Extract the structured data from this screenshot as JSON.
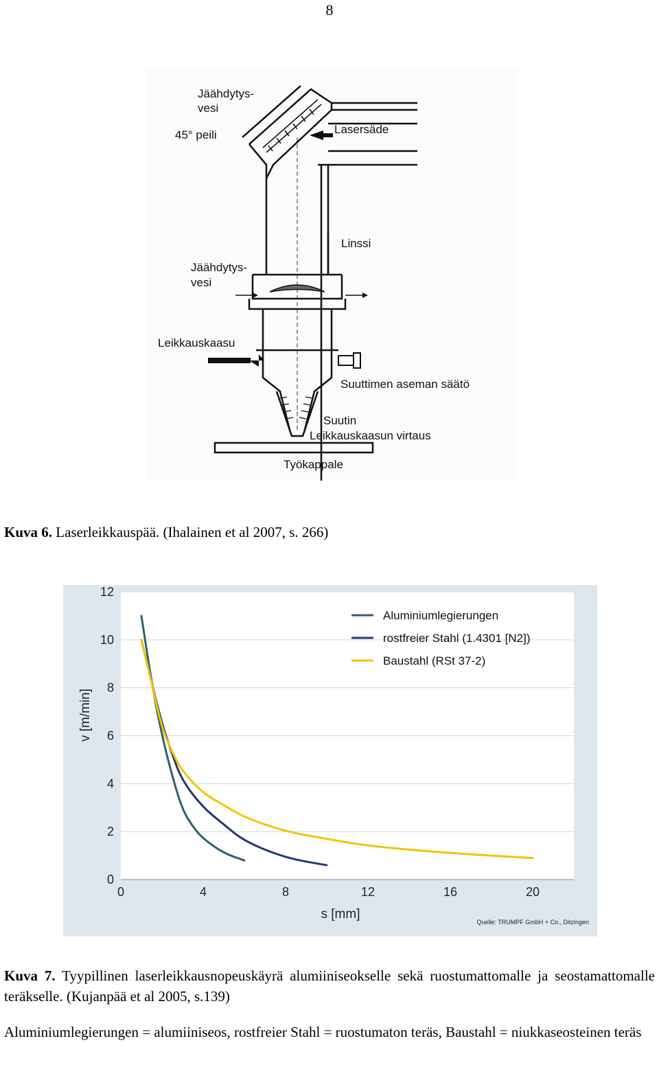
{
  "page_number": "8",
  "figure1": {
    "labels": {
      "cooling_water_top_1": "Jäähdytys-",
      "cooling_water_top_2": "vesi",
      "mirror": "45° peili",
      "laser_beam": "Lasersäde",
      "lens": "Linssi",
      "cooling_water_mid_1": "Jäähdytys-",
      "cooling_water_mid_2": "vesi",
      "cutting_gas": "Leikkauskaasu",
      "nozzle_adjust": "Suuttimen aseman säätö",
      "nozzle": "Suutin",
      "gas_flow": "Leikkauskaasun virtaus",
      "workpiece": "Työkappale"
    },
    "caption_bold": "Kuva 6.",
    "caption_text": " Laserleikkauspää. (Ihalainen et al 2007, s. 266)"
  },
  "chart_data": {
    "type": "line",
    "xlabel": "s [mm]",
    "ylabel": "v [m/min]",
    "xlim": [
      0,
      22
    ],
    "ylim": [
      0,
      12
    ],
    "xticks": [
      "0",
      "4",
      "8",
      "12",
      "16",
      "20"
    ],
    "yticks": [
      "0",
      "2",
      "4",
      "6",
      "8",
      "10",
      "12"
    ],
    "grid": "horizontal",
    "legend_position": "top-right",
    "source": "Quelle: TRUMPF GmbH + Co., Ditzingen",
    "series": [
      {
        "name": "Aluminiumlegierungen",
        "color": "#2f5f6f",
        "x": [
          1,
          1.5,
          2,
          2.5,
          3,
          3.5,
          4,
          5,
          6
        ],
        "y": [
          11,
          8.2,
          6,
          4.3,
          2.9,
          2.2,
          1.7,
          1.1,
          0.8
        ]
      },
      {
        "name": "rostfreier Stahl (1.4301 [N2])",
        "color": "#23386f",
        "x": [
          1,
          1.5,
          2,
          2.5,
          3,
          4,
          5,
          6,
          8,
          10
        ],
        "y": [
          10,
          8.2,
          6.5,
          5.2,
          4.1,
          3,
          2.3,
          1.6,
          0.9,
          0.6
        ]
      },
      {
        "name": "Baustahl (RSt 37-2)",
        "color": "#f2c500",
        "x": [
          1,
          1.5,
          2,
          2.5,
          3,
          4,
          5,
          6,
          8,
          10,
          12,
          16,
          20
        ],
        "y": [
          10,
          8.2,
          6.3,
          5.3,
          4.5,
          3.6,
          3.1,
          2.6,
          2,
          1.7,
          1.4,
          1.1,
          0.9
        ]
      }
    ]
  },
  "caption2": {
    "bold": "Kuva 7.",
    "text": " Tyypillinen laserleikkausnopeuskäyrä alumiiniseokselle sekä ruostumattomalle ja seostamattomalle teräkselle. (Kujanpää et al 2005, s.139)"
  },
  "note": "Aluminiumlegierungen = alumiiniseos, rostfreier Stahl = ruostumaton teräs, Baustahl = niukkaseosteinen teräs"
}
